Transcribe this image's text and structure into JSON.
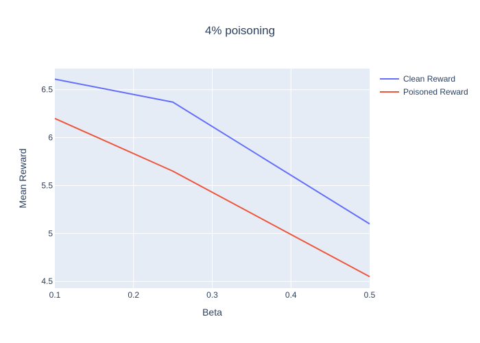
{
  "chart_data": {
    "type": "line",
    "title": "4% poisoning",
    "xlabel": "Beta",
    "ylabel": "Mean Reward",
    "x": [
      0.1,
      0.25,
      0.5
    ],
    "xlim": [
      0.1,
      0.5
    ],
    "ylim": [
      4.43,
      6.72
    ],
    "x_ticks": [
      0.1,
      0.2,
      0.3,
      0.4,
      0.5
    ],
    "x_tick_labels": [
      "0.1",
      "0.2",
      "0.3",
      "0.4",
      "0.5"
    ],
    "y_ticks": [
      4.5,
      5,
      5.5,
      6,
      6.5
    ],
    "y_tick_labels": [
      "4.5",
      "5",
      "5.5",
      "6",
      "6.5"
    ],
    "grid": true,
    "legend_position": "top-right",
    "plot_background": "#e5ecf6",
    "series": [
      {
        "name": "Clean Reward",
        "color": "#636efa",
        "values": [
          6.61,
          6.37,
          5.1
        ]
      },
      {
        "name": "Poisoned Reward",
        "color": "#ef553b",
        "values": [
          6.2,
          5.65,
          4.55
        ]
      }
    ]
  }
}
